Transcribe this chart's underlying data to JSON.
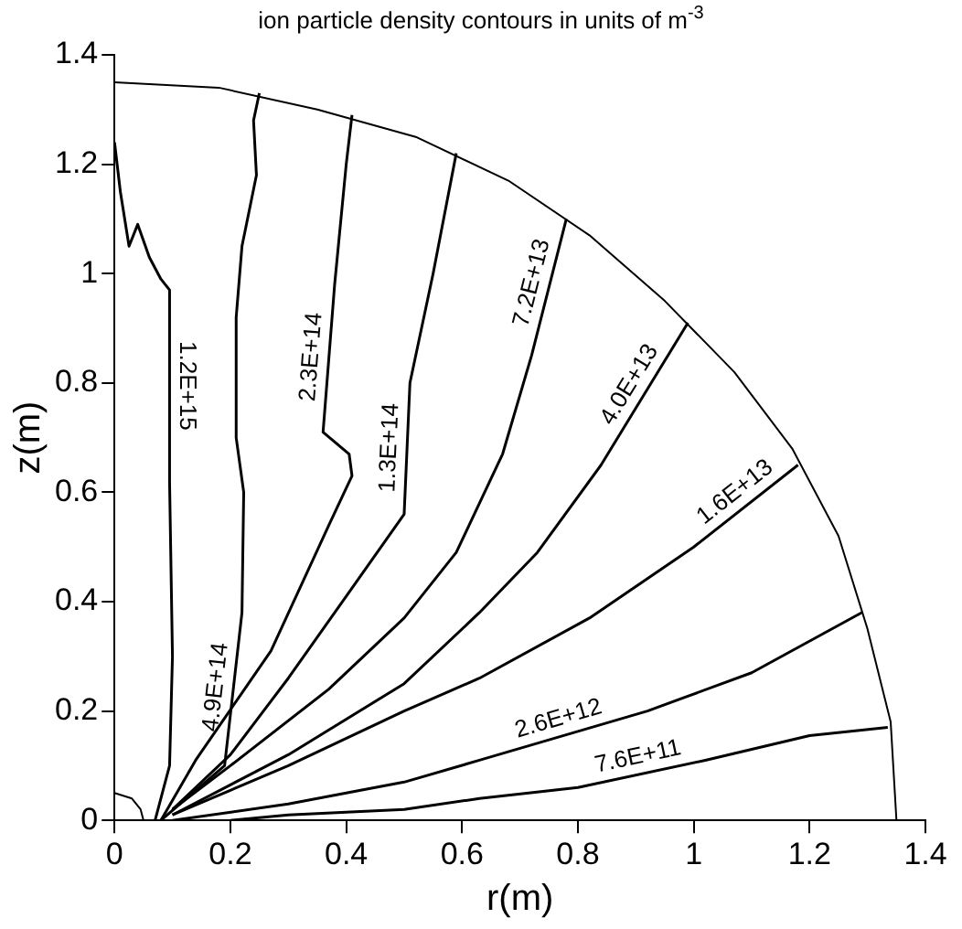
{
  "chart_data": {
    "type": "line",
    "title": "ion particle density contours in units of m$^{-3}$",
    "xlabel": "r(m)",
    "ylabel": "z(m)",
    "xlim": [
      0,
      1.4
    ],
    "ylim": [
      0,
      1.4
    ],
    "xticks": [
      0,
      0.2,
      0.4,
      0.6,
      0.8,
      1,
      1.2,
      1.4
    ],
    "yticks": [
      0,
      0.2,
      0.4,
      0.6,
      0.8,
      1,
      1.2,
      1.4
    ],
    "grid": false,
    "legend": false,
    "marker": "none",
    "line_style": "solid",
    "series": [
      {
        "name": "1.2E+15",
        "color": "#000000",
        "x": [
          0,
          0.01,
          0.025,
          0.04,
          0.06,
          0.08,
          0.095,
          0.095,
          0.1,
          0.095,
          0.07
        ],
        "values": [
          1.24,
          1.15,
          1.05,
          1.09,
          1.03,
          0.99,
          0.97,
          0.62,
          0.3,
          0.1,
          0
        ]
      },
      {
        "name": "4.9E+14",
        "color": "#000000",
        "x": [
          0.25,
          0.24,
          0.245,
          0.22,
          0.21,
          0.21,
          0.223,
          0.22,
          0.19,
          0.08
        ],
        "values": [
          1.33,
          1.28,
          1.18,
          1.05,
          0.92,
          0.7,
          0.6,
          0.38,
          0.1,
          0
        ]
      },
      {
        "name": "2.3E+14",
        "color": "#000000",
        "x": [
          0.41,
          0.4,
          0.38,
          0.36,
          0.405,
          0.41,
          0.37,
          0.27,
          0.14,
          0.08
        ],
        "values": [
          1.29,
          1.2,
          0.98,
          0.71,
          0.67,
          0.63,
          0.54,
          0.31,
          0.11,
          0
        ]
      },
      {
        "name": "1.3E+14",
        "color": "#000000",
        "x": [
          0.59,
          0.55,
          0.51,
          0.5,
          0.4,
          0.3,
          0.2,
          0.1
        ],
        "values": [
          1.22,
          1.0,
          0.8,
          0.56,
          0.41,
          0.26,
          0.12,
          0.02
        ]
      },
      {
        "name": "7.2E+13",
        "color": "#000000",
        "x": [
          0.78,
          0.72,
          0.67,
          0.59,
          0.5,
          0.37,
          0.2,
          0.1
        ],
        "values": [
          1.1,
          0.85,
          0.67,
          0.49,
          0.37,
          0.24,
          0.1,
          0.02
        ]
      },
      {
        "name": "4.0E+13",
        "color": "#000000",
        "x": [
          0.99,
          0.84,
          0.73,
          0.63,
          0.5,
          0.3,
          0.1
        ],
        "values": [
          0.91,
          0.65,
          0.49,
          0.38,
          0.25,
          0.12,
          0.01
        ]
      },
      {
        "name": "1.6E+13",
        "color": "#000000",
        "x": [
          1.18,
          1.0,
          0.82,
          0.63,
          0.5,
          0.3,
          0.1
        ],
        "values": [
          0.65,
          0.5,
          0.37,
          0.26,
          0.2,
          0.1,
          0.01
        ]
      },
      {
        "name": "2.6E+12",
        "color": "#000000",
        "x": [
          1.29,
          1.1,
          0.92,
          0.63,
          0.5,
          0.3,
          0.1
        ],
        "values": [
          0.38,
          0.27,
          0.2,
          0.11,
          0.07,
          0.03,
          0
        ]
      },
      {
        "name": "7.6E+11",
        "color": "#000000",
        "x": [
          1.335,
          1.2,
          1.02,
          0.8,
          0.63,
          0.5,
          0.3,
          0.2
        ],
        "values": [
          0.17,
          0.155,
          0.11,
          0.06,
          0.04,
          0.02,
          0.01,
          0
        ]
      },
      {
        "color": "#000000",
        "x": [
          0,
          0.18,
          0.35,
          0.52,
          0.68,
          0.82,
          0.95,
          1.07,
          1.17,
          1.25,
          1.3,
          1.34,
          1.35
        ],
        "values": [
          1.35,
          1.34,
          1.3,
          1.25,
          1.17,
          1.07,
          0.95,
          0.82,
          0.68,
          0.52,
          0.35,
          0.18,
          0
        ]
      },
      {
        "color": "#000000",
        "x": [
          0,
          0.03,
          0.045,
          0.05
        ],
        "values": [
          0.05,
          0.04,
          0.02,
          0
        ]
      }
    ]
  }
}
